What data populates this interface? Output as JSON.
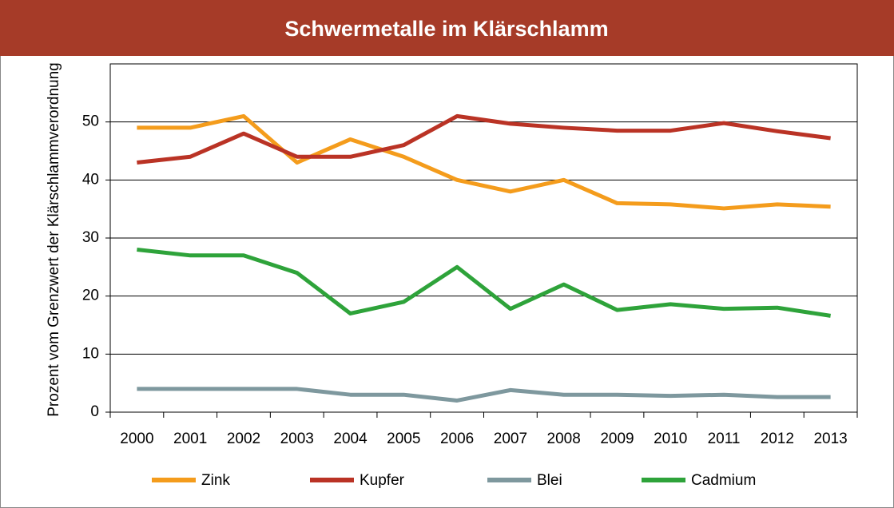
{
  "chart_data": {
    "type": "line",
    "title": "Schwermetalle im Klärschlamm",
    "y_label": "Prozent vom Grenzwert der Klärschlammverordnung",
    "categories": [
      "2000",
      "2001",
      "2002",
      "2003",
      "2004",
      "2005",
      "2006",
      "2007",
      "2008",
      "2009",
      "2010",
      "2011",
      "2012",
      "2013"
    ],
    "series": [
      {
        "name": "Zink",
        "color": "#f49c1c",
        "values": [
          49,
          49,
          51,
          43,
          47,
          44,
          40,
          38,
          40,
          36,
          35.8,
          35.1,
          35.8,
          35.4
        ]
      },
      {
        "name": "Kupfer",
        "color": "#ba3325",
        "values": [
          43,
          44,
          48,
          44,
          44,
          46,
          51,
          49.7,
          49,
          48.5,
          48.5,
          49.8,
          48.4,
          47.2
        ]
      },
      {
        "name": "Blei",
        "color": "#7e989e",
        "values": [
          4,
          4,
          4,
          4,
          3,
          3,
          2,
          3.8,
          3,
          3,
          2.8,
          3,
          2.6,
          2.6
        ]
      },
      {
        "name": "Cadmium",
        "color": "#2ea33a",
        "values": [
          28,
          27,
          27,
          24,
          17,
          19,
          25,
          17.8,
          22,
          17.6,
          18.6,
          17.8,
          18,
          16.6
        ]
      }
    ],
    "ylim": [
      0,
      60
    ],
    "yticks": [
      0,
      10,
      20,
      30,
      40,
      50
    ],
    "grid": true
  }
}
